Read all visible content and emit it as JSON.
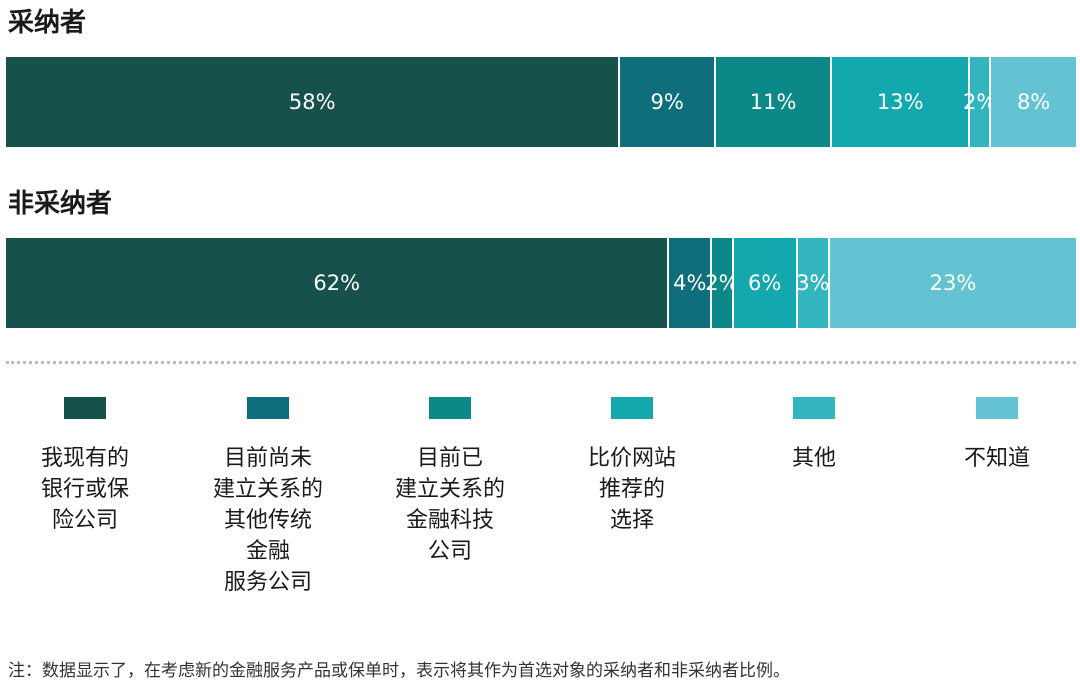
{
  "chart_data": {
    "type": "bar",
    "orientation": "horizontal",
    "stacked": true,
    "percent_stacked": true,
    "groups": [
      {
        "title": "采纳者",
        "values": [
          58,
          9,
          11,
          13,
          2,
          8
        ],
        "labels": [
          "58%",
          "9%",
          "11%",
          "13%",
          "2%",
          "8%"
        ]
      },
      {
        "title": "非采纳者",
        "values": [
          62,
          4,
          2,
          6,
          3,
          23
        ],
        "labels": [
          "62%",
          "4%",
          "2%",
          "6%",
          "3%",
          "23%"
        ]
      }
    ],
    "legend": [
      {
        "label": "我现有的\n银行或保\n险公司",
        "color": "#17514c"
      },
      {
        "label": "目前尚未\n建立关系的\n其他传统\n金融\n服务公司",
        "color": "#0f6e7b"
      },
      {
        "label": "目前已\n建立关系的\n金融科技\n公司",
        "color": "#0d8888"
      },
      {
        "label": "比价网站\n推荐的\n选择",
        "color": "#12a8ad"
      },
      {
        "label": "其他",
        "color": "#33b5bf"
      },
      {
        "label": "不知道",
        "color": "#63c3d2"
      }
    ],
    "legend_placement": "bottom",
    "grid": false
  },
  "note": "注：数据显示了，在考虑新的金融服务产品或保单时，表示将其作为首选对象的采纳者和非采纳者比例。"
}
